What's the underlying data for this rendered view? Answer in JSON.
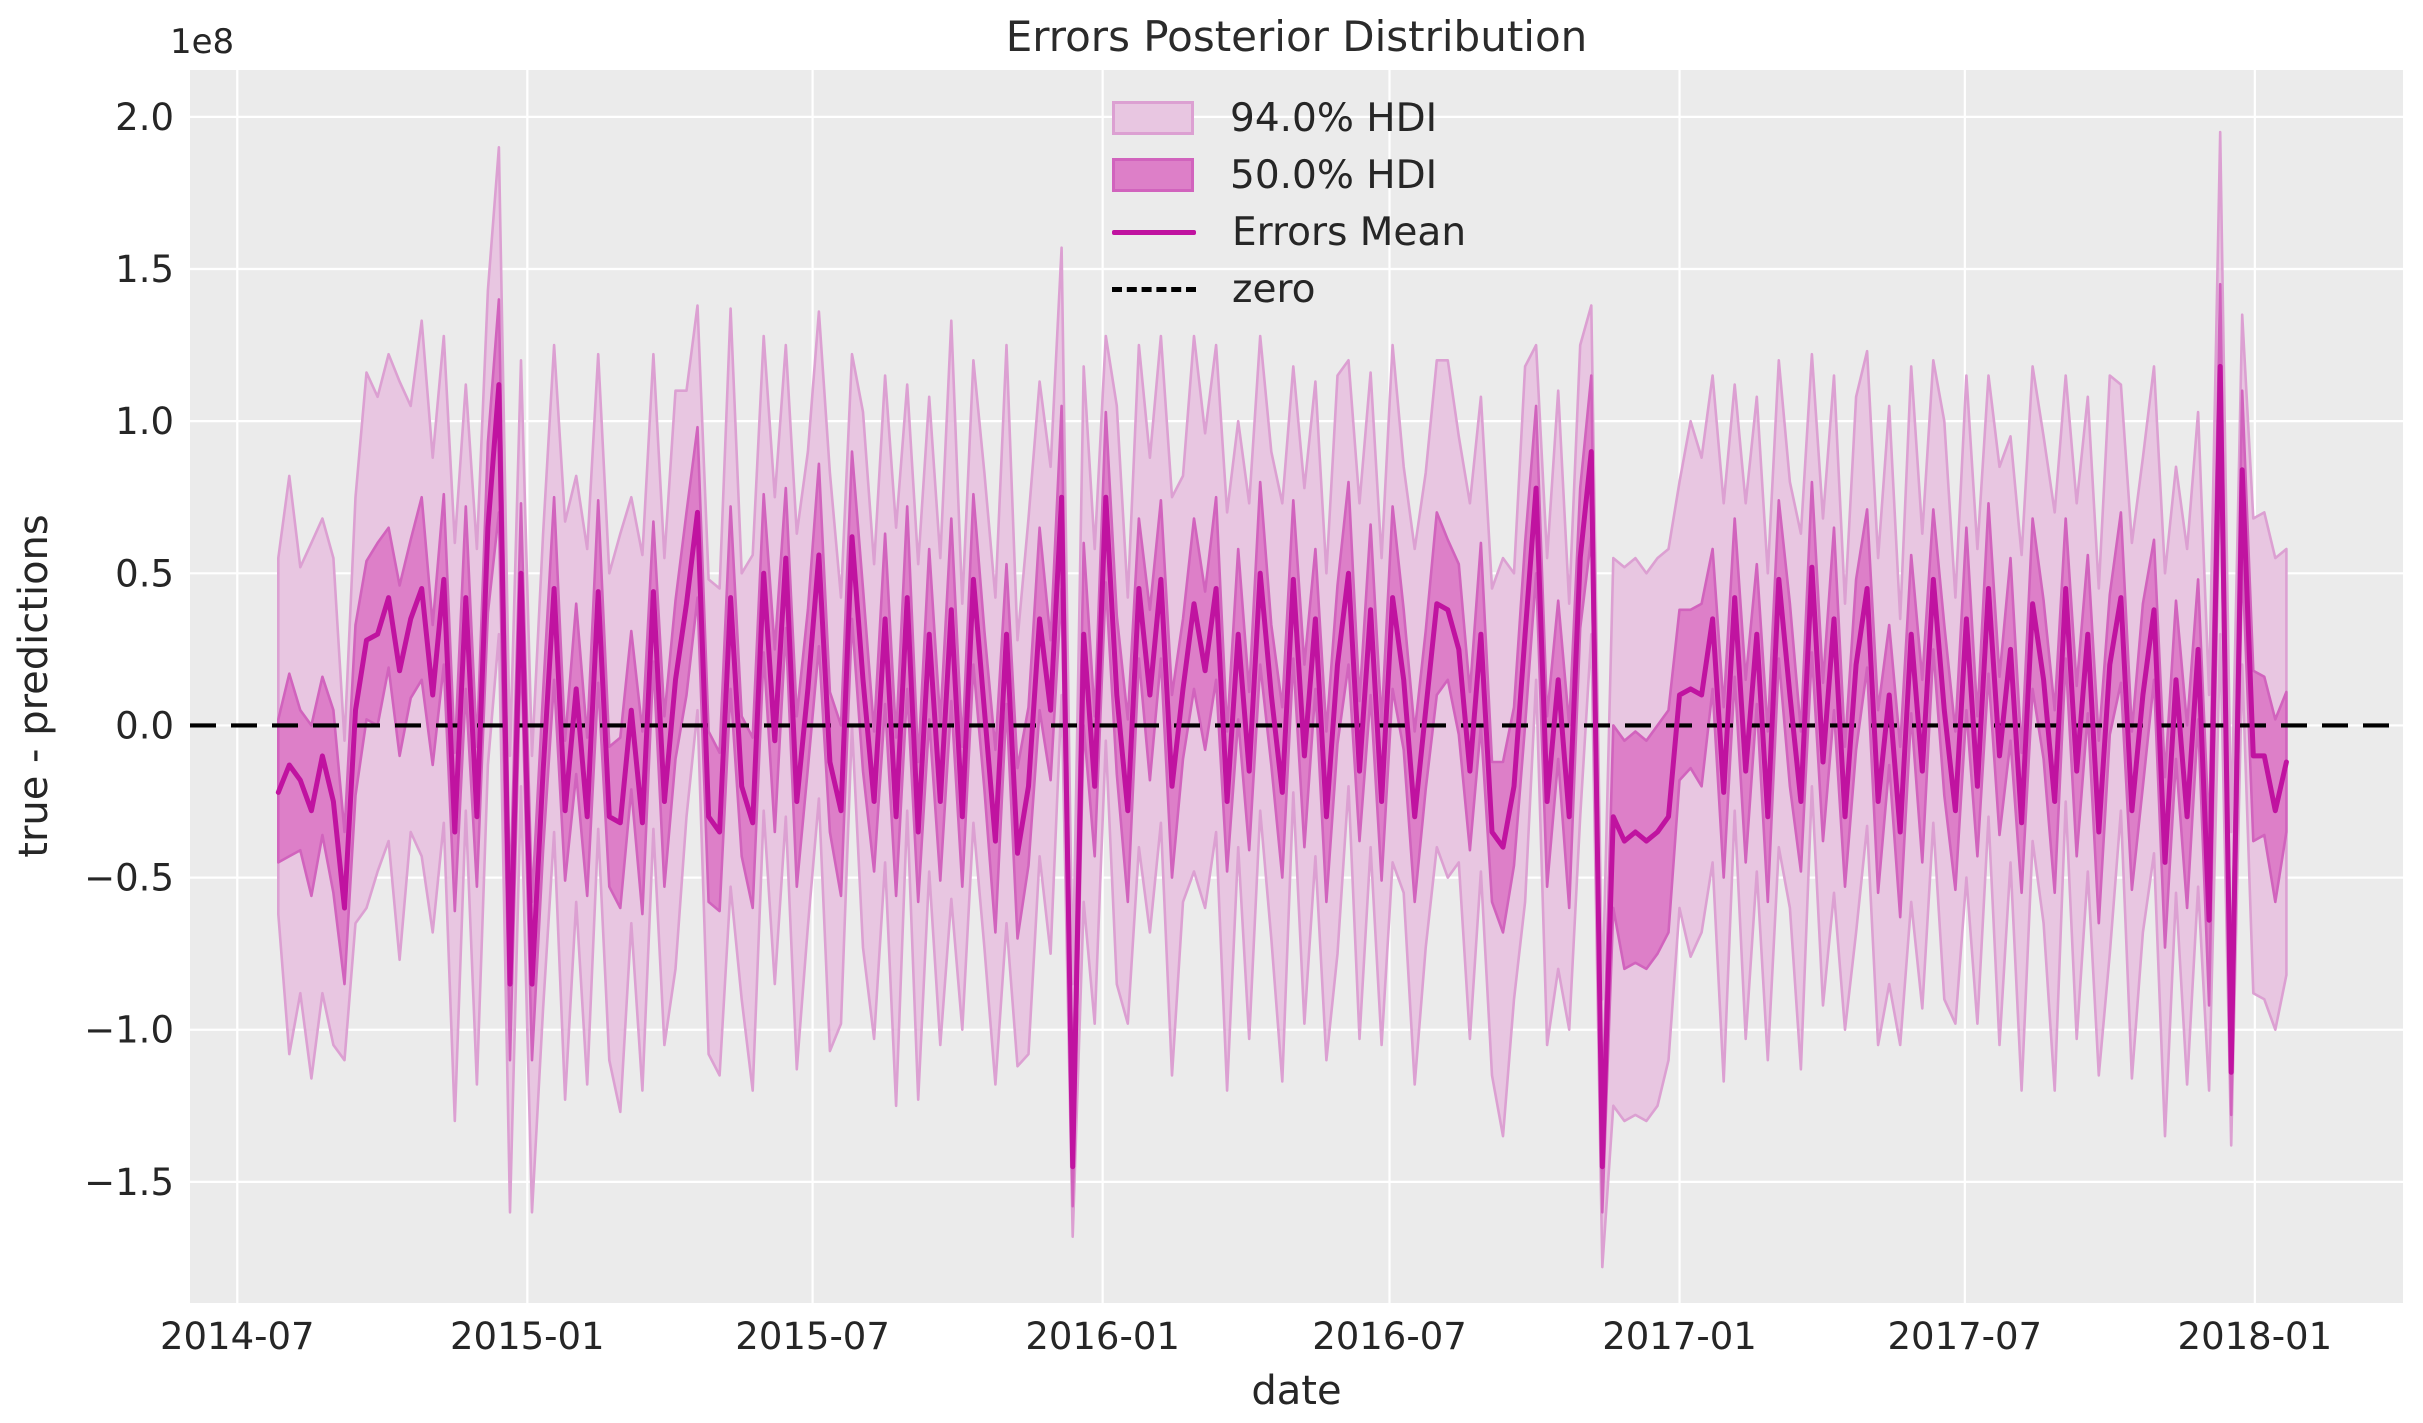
{
  "title": "Errors Posterior Distribution",
  "axes": {
    "xlabel": "date",
    "ylabel": "true - predictions",
    "offset_label": "1e8",
    "xlim": [
      "2014-06-01",
      "2018-04-05"
    ],
    "ylim": [
      -1.898,
      2.154
    ],
    "x_ticks": [
      {
        "label": "2014-07",
        "date": "2014-07-01"
      },
      {
        "label": "2015-01",
        "date": "2015-01-01"
      },
      {
        "label": "2015-07",
        "date": "2015-07-01"
      },
      {
        "label": "2016-01",
        "date": "2016-01-01"
      },
      {
        "label": "2016-07",
        "date": "2016-07-01"
      },
      {
        "label": "2017-01",
        "date": "2017-01-01"
      },
      {
        "label": "2017-07",
        "date": "2017-07-01"
      },
      {
        "label": "2018-01",
        "date": "2018-01-01"
      }
    ],
    "y_ticks": [
      {
        "label": "2.0",
        "value": 2.0
      },
      {
        "label": "1.5",
        "value": 1.5
      },
      {
        "label": "1.0",
        "value": 1.0
      },
      {
        "label": "0.5",
        "value": 0.5
      },
      {
        "label": "0.0",
        "value": 0.0
      },
      {
        "label": "−0.5",
        "value": -0.5
      },
      {
        "label": "−1.0",
        "value": -1.0
      },
      {
        "label": "−1.5",
        "value": -1.5
      }
    ],
    "grid": true
  },
  "legend": {
    "items": [
      {
        "label": "94.0% HDI",
        "type": "patch"
      },
      {
        "label": "50.0% HDI",
        "type": "patch"
      },
      {
        "label": "Errors Mean",
        "type": "line"
      },
      {
        "label": "zero",
        "type": "dashed-line"
      }
    ]
  },
  "colors": {
    "figure_bg": "#ffffff",
    "axes_bg": "#ebebeb",
    "grid": "#ffffff",
    "text": "#262626",
    "mean_line": "#c013a0",
    "hdi50_fill": "#dd7fc8",
    "hdi50_edge": "#d163bd",
    "hdi94_fill": "#e8c6e1",
    "hdi94_edge": "#dca0d2",
    "zero_line": "#000000"
  },
  "chart_data": {
    "type": "line",
    "title": "Errors Posterior Distribution",
    "xlabel": "date",
    "ylabel": "true - predictions",
    "y_unit_factor": "1e8",
    "x_start": "2014-07-27",
    "x_step_days": 7,
    "n_points": 183,
    "xlim": [
      "2014-06-01",
      "2018-04-05"
    ],
    "ylim": [
      -1.898,
      2.154
    ],
    "legend_position": "upper center",
    "series": [
      {
        "name": "Errors Mean",
        "role": "mean",
        "values": [
          -0.22,
          -0.13,
          -0.18,
          -0.28,
          -0.1,
          -0.25,
          -0.6,
          0.05,
          0.28,
          0.3,
          0.42,
          0.18,
          0.35,
          0.45,
          0.1,
          0.48,
          -0.35,
          0.42,
          -0.3,
          0.65,
          1.12,
          -0.85,
          0.5,
          -0.85,
          -0.15,
          0.45,
          -0.28,
          0.12,
          -0.3,
          0.44,
          -0.3,
          -0.32,
          0.05,
          -0.32,
          0.44,
          -0.25,
          0.15,
          0.4,
          0.7,
          -0.3,
          -0.35,
          0.42,
          -0.2,
          -0.32,
          0.5,
          -0.05,
          0.55,
          -0.25,
          0.12,
          0.56,
          -0.12,
          -0.28,
          0.62,
          0.15,
          -0.25,
          0.35,
          -0.3,
          0.42,
          -0.35,
          0.3,
          -0.25,
          0.38,
          -0.3,
          0.48,
          0.05,
          -0.38,
          0.3,
          -0.42,
          -0.2,
          0.35,
          0.05,
          0.75,
          -1.45,
          0.3,
          -0.2,
          0.75,
          0.1,
          -0.28,
          0.45,
          0.1,
          0.48,
          -0.2,
          0.12,
          0.4,
          0.18,
          0.45,
          -0.25,
          0.3,
          -0.15,
          0.5,
          0.1,
          -0.22,
          0.48,
          -0.1,
          0.35,
          -0.3,
          0.2,
          0.5,
          -0.15,
          0.38,
          -0.25,
          0.42,
          0.15,
          -0.3,
          0.05,
          0.4,
          0.38,
          0.25,
          -0.15,
          0.3,
          -0.35,
          -0.4,
          -0.2,
          0.3,
          0.78,
          -0.25,
          0.15,
          -0.3,
          0.55,
          0.9,
          -1.45,
          -0.3,
          -0.38,
          -0.35,
          -0.38,
          -0.35,
          -0.3,
          0.1,
          0.12,
          0.1,
          0.35,
          -0.22,
          0.42,
          -0.15,
          0.3,
          -0.3,
          0.48,
          0.1,
          -0.25,
          0.52,
          -0.12,
          0.35,
          -0.3,
          0.2,
          0.45,
          -0.25,
          0.1,
          -0.35,
          0.3,
          -0.15,
          0.48,
          0.05,
          -0.28,
          0.35,
          -0.2,
          0.45,
          -0.1,
          0.25,
          -0.32,
          0.4,
          0.15,
          -0.25,
          0.45,
          -0.15,
          0.3,
          -0.35,
          0.2,
          0.42,
          -0.28,
          0.1,
          0.38,
          -0.45,
          0.15,
          -0.3,
          0.25,
          -0.64,
          1.18,
          -1.14,
          0.84,
          -0.1,
          -0.1,
          -0.28,
          -0.12
        ]
      },
      {
        "name": "50.0% HDI",
        "role": "band",
        "lower": [
          -0.45,
          -0.43,
          -0.41,
          -0.56,
          -0.36,
          -0.55,
          -0.85,
          -0.23,
          0.02,
          0.0,
          0.19,
          -0.1,
          0.09,
          0.15,
          -0.13,
          0.2,
          -0.61,
          0.12,
          -0.53,
          0.37,
          0.7,
          -1.1,
          0.27,
          -1.1,
          -0.41,
          0.15,
          -0.51,
          -0.16,
          -0.56,
          0.14,
          -0.53,
          -0.6,
          -0.21,
          -0.62,
          0.21,
          -0.53,
          -0.11,
          0.1,
          0.42,
          -0.58,
          -0.61,
          0.12,
          -0.43,
          -0.6,
          0.24,
          -0.35,
          0.32,
          -0.53,
          -0.14,
          0.26,
          -0.35,
          -0.56,
          0.35,
          -0.15,
          -0.48,
          0.07,
          -0.56,
          0.12,
          -0.58,
          0.02,
          -0.51,
          0.08,
          -0.53,
          0.2,
          -0.21,
          -0.68,
          0.07,
          -0.7,
          -0.46,
          0.05,
          -0.18,
          0.45,
          -1.58,
          0.0,
          -0.43,
          0.47,
          -0.16,
          -0.58,
          0.22,
          -0.18,
          0.22,
          -0.5,
          -0.11,
          0.12,
          -0.08,
          0.15,
          -0.48,
          0.02,
          -0.41,
          0.2,
          -0.13,
          -0.5,
          0.22,
          -0.4,
          0.12,
          -0.58,
          -0.06,
          0.2,
          -0.38,
          0.1,
          -0.51,
          0.12,
          -0.08,
          -0.58,
          -0.21,
          0.1,
          0.15,
          -0.03,
          -0.41,
          0.0,
          -0.58,
          -0.68,
          -0.46,
          0.0,
          0.5,
          -0.53,
          -0.11,
          -0.6,
          0.32,
          0.62,
          -1.6,
          -0.6,
          -0.8,
          -0.78,
          -0.8,
          -0.75,
          -0.68,
          -0.18,
          -0.14,
          -0.2,
          0.12,
          -0.5,
          0.16,
          -0.45,
          0.07,
          -0.58,
          0.22,
          -0.2,
          -0.48,
          0.24,
          -0.38,
          0.05,
          -0.53,
          -0.08,
          0.19,
          -0.55,
          -0.13,
          -0.63,
          0.04,
          -0.45,
          0.25,
          -0.23,
          -0.54,
          0.05,
          -0.43,
          0.17,
          -0.36,
          -0.05,
          -0.55,
          0.12,
          -0.11,
          -0.55,
          0.22,
          -0.43,
          0.04,
          -0.65,
          -0.03,
          0.14,
          -0.54,
          -0.2,
          0.15,
          -0.73,
          -0.11,
          -0.6,
          0.02,
          -0.92,
          0.9,
          -1.28,
          0.55,
          -0.38,
          -0.36,
          -0.58,
          -0.35
        ],
        "upper": [
          0.02,
          0.17,
          0.05,
          0.0,
          0.16,
          0.05,
          -0.35,
          0.33,
          0.54,
          0.6,
          0.65,
          0.46,
          0.61,
          0.75,
          0.33,
          0.76,
          -0.09,
          0.72,
          -0.07,
          0.93,
          1.4,
          -0.58,
          0.73,
          -0.58,
          0.11,
          0.75,
          -0.05,
          0.4,
          -0.04,
          0.74,
          -0.07,
          -0.04,
          0.31,
          -0.02,
          0.67,
          0.03,
          0.41,
          0.7,
          0.98,
          -0.02,
          -0.09,
          0.72,
          0.03,
          -0.04,
          0.76,
          0.25,
          0.78,
          0.03,
          0.38,
          0.86,
          0.11,
          0.0,
          0.9,
          0.45,
          -0.02,
          0.63,
          -0.04,
          0.72,
          -0.12,
          0.58,
          0.01,
          0.68,
          -0.07,
          0.76,
          0.31,
          -0.08,
          0.53,
          -0.14,
          0.06,
          0.65,
          0.28,
          1.05,
          -1.25,
          0.6,
          0.03,
          1.03,
          0.36,
          0.02,
          0.68,
          0.38,
          0.74,
          0.1,
          0.35,
          0.68,
          0.44,
          0.75,
          -0.02,
          0.58,
          0.11,
          0.8,
          0.33,
          0.06,
          0.74,
          0.2,
          0.58,
          -0.02,
          0.46,
          0.8,
          0.08,
          0.66,
          0.01,
          0.72,
          0.38,
          -0.02,
          0.31,
          0.7,
          0.61,
          0.53,
          0.11,
          0.6,
          -0.12,
          -0.12,
          0.06,
          0.6,
          1.05,
          0.03,
          0.41,
          0.0,
          0.78,
          1.15,
          -1.28,
          0.0,
          -0.05,
          -0.02,
          -0.05,
          0.0,
          0.05,
          0.38,
          0.38,
          0.4,
          0.58,
          0.06,
          0.68,
          0.15,
          0.53,
          -0.02,
          0.74,
          0.4,
          -0.02,
          0.8,
          0.14,
          0.65,
          -0.07,
          0.48,
          0.71,
          0.05,
          0.33,
          -0.07,
          0.56,
          0.15,
          0.71,
          0.33,
          -0.02,
          0.65,
          0.03,
          0.73,
          0.16,
          0.55,
          -0.09,
          0.68,
          0.41,
          0.05,
          0.68,
          0.13,
          0.56,
          -0.05,
          0.43,
          0.7,
          -0.02,
          0.4,
          0.61,
          -0.17,
          0.41,
          0.0,
          0.48,
          -0.36,
          1.45,
          -0.88,
          1.1,
          0.18,
          0.16,
          0.02,
          0.11
        ]
      },
      {
        "name": "94.0% HDI",
        "role": "band",
        "lower": [
          -0.62,
          -1.08,
          -0.88,
          -1.16,
          -0.88,
          -1.05,
          -1.1,
          -0.65,
          -0.6,
          -0.48,
          -0.38,
          -0.77,
          -0.35,
          -0.43,
          -0.68,
          -0.32,
          -1.3,
          -0.28,
          -1.18,
          -0.13,
          0.3,
          -1.6,
          -0.2,
          -1.6,
          -0.93,
          -0.35,
          -1.23,
          -0.58,
          -1.18,
          -0.34,
          -1.1,
          -1.27,
          -0.65,
          -1.2,
          -0.34,
          -1.05,
          -0.8,
          -0.3,
          0.05,
          -1.08,
          -1.15,
          -0.53,
          -0.9,
          -1.2,
          -0.28,
          -0.85,
          -0.3,
          -1.13,
          -0.66,
          -0.24,
          -1.07,
          -0.98,
          0.0,
          -0.73,
          -1.03,
          -0.45,
          -1.25,
          -0.28,
          -1.23,
          -0.48,
          -1.05,
          -0.57,
          -1.0,
          -0.32,
          -0.73,
          -1.18,
          -0.65,
          -1.12,
          -1.08,
          -0.43,
          -0.75,
          0.1,
          -1.68,
          -0.58,
          -0.98,
          -0.05,
          -0.85,
          -0.98,
          -0.4,
          -0.68,
          -0.32,
          -1.15,
          -0.58,
          -0.48,
          -0.6,
          -0.35,
          -1.2,
          -0.4,
          -1.03,
          -0.28,
          -0.7,
          -1.17,
          -0.22,
          -0.98,
          -0.43,
          -1.1,
          -0.75,
          -0.2,
          -1.03,
          -0.4,
          -1.05,
          -0.45,
          -0.55,
          -1.18,
          -0.73,
          -0.4,
          -0.5,
          -0.45,
          -1.03,
          -0.48,
          -1.15,
          -1.35,
          -0.9,
          -0.58,
          0.15,
          -1.05,
          -0.8,
          -1.0,
          -0.3,
          0.3,
          -1.78,
          -1.25,
          -1.3,
          -1.28,
          -1.3,
          -1.25,
          -1.1,
          -0.6,
          -0.76,
          -0.68,
          -0.45,
          -1.17,
          -0.28,
          -1.03,
          -0.48,
          -1.1,
          -0.4,
          -0.6,
          -1.13,
          -0.2,
          -0.92,
          -0.55,
          -1.0,
          -0.68,
          -0.33,
          -1.05,
          -0.85,
          -1.05,
          -0.58,
          -0.93,
          -0.32,
          -0.9,
          -0.98,
          -0.5,
          -0.98,
          -0.3,
          -1.05,
          -0.45,
          -1.2,
          -0.38,
          -0.65,
          -1.2,
          -0.25,
          -1.03,
          -0.48,
          -1.15,
          -0.75,
          -0.28,
          -1.16,
          -0.68,
          -0.42,
          -1.35,
          -0.55,
          -1.18,
          -0.53,
          -1.2,
          0.3,
          -1.38,
          0.2,
          -0.88,
          -0.9,
          -1.0,
          -0.82
        ],
        "upper": [
          0.55,
          0.82,
          0.52,
          0.6,
          0.68,
          0.55,
          -0.05,
          0.75,
          1.16,
          1.08,
          1.22,
          1.13,
          1.05,
          1.33,
          0.88,
          1.28,
          0.6,
          1.12,
          0.58,
          1.43,
          1.9,
          -0.1,
          1.2,
          -0.1,
          0.63,
          1.25,
          0.67,
          0.82,
          0.58,
          1.22,
          0.5,
          0.63,
          0.75,
          0.56,
          1.22,
          0.55,
          1.1,
          1.1,
          1.38,
          0.48,
          0.45,
          1.37,
          0.5,
          0.56,
          1.28,
          0.75,
          1.25,
          0.63,
          0.9,
          1.36,
          0.83,
          0.42,
          1.22,
          1.03,
          0.53,
          1.15,
          0.65,
          1.12,
          0.53,
          1.08,
          0.55,
          1.33,
          0.4,
          1.2,
          0.83,
          0.42,
          1.25,
          0.28,
          0.68,
          1.13,
          0.85,
          1.57,
          -0.85,
          1.18,
          0.58,
          1.28,
          1.05,
          0.42,
          1.25,
          0.88,
          1.28,
          0.75,
          0.82,
          1.28,
          0.96,
          1.25,
          0.7,
          1.0,
          0.73,
          1.28,
          0.9,
          0.73,
          1.18,
          0.78,
          1.13,
          0.5,
          1.15,
          1.2,
          0.73,
          1.16,
          0.55,
          1.25,
          0.85,
          0.58,
          0.83,
          1.2,
          1.2,
          0.95,
          0.73,
          1.08,
          0.45,
          0.55,
          0.5,
          1.18,
          1.25,
          0.55,
          1.1,
          0.4,
          1.25,
          1.38,
          -0.9,
          0.55,
          0.52,
          0.55,
          0.5,
          0.55,
          0.58,
          0.8,
          1.0,
          0.88,
          1.15,
          0.73,
          1.12,
          0.73,
          1.08,
          0.5,
          1.2,
          0.8,
          0.63,
          1.22,
          0.68,
          1.15,
          0.4,
          1.08,
          1.23,
          0.55,
          1.05,
          0.35,
          1.18,
          0.63,
          1.2,
          1.0,
          0.42,
          1.15,
          0.58,
          1.15,
          0.85,
          0.95,
          0.56,
          1.18,
          0.95,
          0.7,
          1.15,
          0.73,
          1.08,
          0.45,
          1.15,
          1.12,
          0.6,
          0.88,
          1.18,
          0.5,
          0.85,
          0.58,
          1.03,
          0.1,
          1.95,
          -0.35,
          1.35,
          0.68,
          0.7,
          0.55,
          0.58
        ]
      },
      {
        "name": "zero",
        "role": "hline",
        "value": 0
      }
    ]
  }
}
